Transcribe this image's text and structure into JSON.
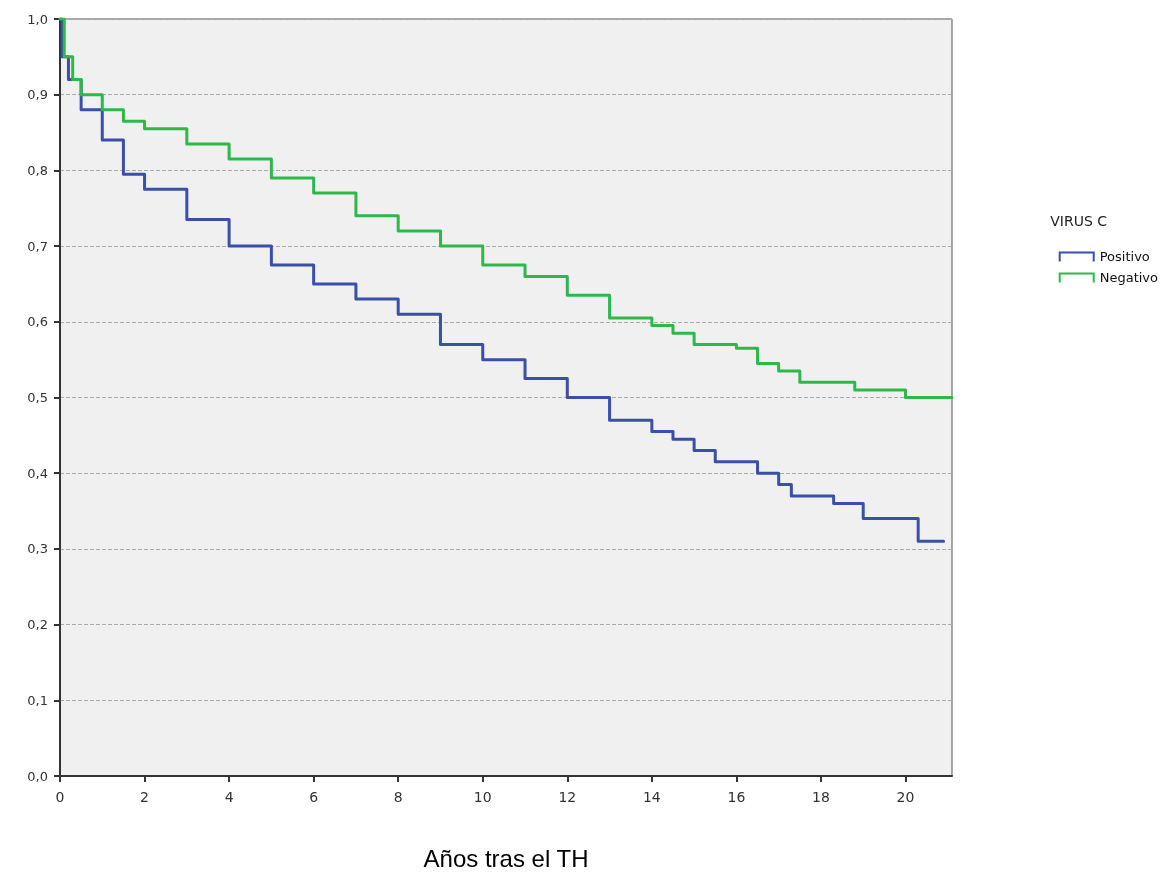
{
  "chart_data": {
    "type": "step",
    "xlabel": "Años tras el TH",
    "legend_title": "VIRUS C",
    "legend": "right",
    "grid": "y",
    "marker": "none",
    "xlim": [
      0,
      21.1
    ],
    "xticks": [
      0,
      2,
      4,
      6,
      8,
      10,
      12,
      14,
      16,
      18,
      20
    ],
    "ylim": [
      0,
      1
    ],
    "yticks": [
      {
        "value": 0,
        "label": "0,0"
      },
      {
        "value": 0.1,
        "label": "0,1"
      },
      {
        "value": 0.2,
        "label": "0,2"
      },
      {
        "value": 0.3,
        "label": "0,3"
      },
      {
        "value": 0.4,
        "label": "0,4"
      },
      {
        "value": 0.5,
        "label": "0,5"
      },
      {
        "value": 0.6,
        "label": "0,6"
      },
      {
        "value": 0.7,
        "label": "0,7"
      },
      {
        "value": 0.8,
        "label": "0,8"
      },
      {
        "value": 0.9,
        "label": "0,9"
      },
      {
        "value": 1,
        "label": "1,0"
      }
    ],
    "series": [
      {
        "name": "Positivo",
        "color": "#3a4fa8",
        "x": [
          0,
          0.05,
          0.2,
          0.5,
          1,
          1.5,
          2,
          3,
          4,
          5,
          6,
          7,
          8,
          9,
          10,
          11,
          12,
          13,
          14,
          14.5,
          15,
          15.5,
          16,
          16.5,
          17,
          17.3,
          18,
          18.3,
          19,
          20.3,
          20.9
        ],
        "values": [
          1,
          0.95,
          0.92,
          0.88,
          0.84,
          0.795,
          0.775,
          0.735,
          0.7,
          0.675,
          0.65,
          0.63,
          0.61,
          0.57,
          0.55,
          0.525,
          0.5,
          0.47,
          0.455,
          0.445,
          0.43,
          0.415,
          0.415,
          0.4,
          0.385,
          0.37,
          0.37,
          0.36,
          0.34,
          0.31,
          0.31
        ]
      },
      {
        "name": "Negativo",
        "color": "#2db84a",
        "x": [
          0,
          0.1,
          0.3,
          0.5,
          1,
          1.5,
          2,
          3,
          4,
          5,
          6,
          7,
          8,
          9,
          10,
          11,
          12,
          13,
          14,
          14.5,
          15,
          16,
          16.5,
          17,
          17.5,
          18.8,
          20,
          21.1
        ],
        "values": [
          1,
          0.95,
          0.92,
          0.9,
          0.88,
          0.865,
          0.855,
          0.835,
          0.815,
          0.79,
          0.77,
          0.74,
          0.72,
          0.7,
          0.675,
          0.66,
          0.635,
          0.605,
          0.595,
          0.585,
          0.57,
          0.565,
          0.545,
          0.535,
          0.52,
          0.51,
          0.5,
          0.5
        ]
      }
    ]
  }
}
